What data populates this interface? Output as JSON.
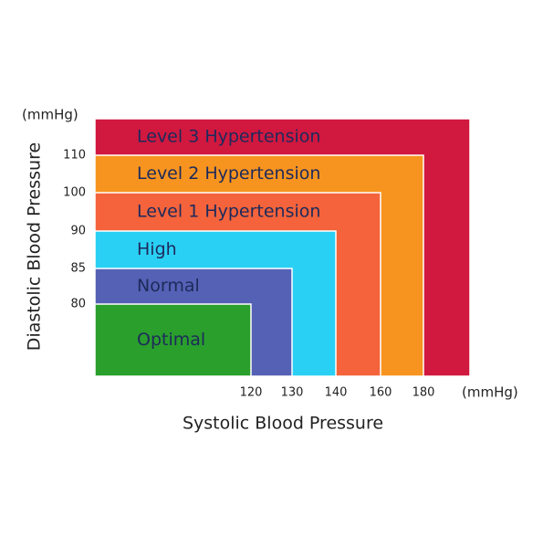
{
  "chart_data": {
    "type": "zones",
    "y_unit": "(mmHg)",
    "x_unit": "(mmHg)",
    "xlabel": "Systolic Blood Pressure",
    "ylabel": "Diastolic Blood Pressure",
    "xticks": [
      120,
      130,
      140,
      160,
      180
    ],
    "yticks": [
      80,
      85,
      90,
      100,
      110
    ],
    "zones": [
      {
        "name": "Optimal",
        "color": "#2a9f2c",
        "systolic": 120,
        "diastolic": 80
      },
      {
        "name": "Normal",
        "color": "#5561b4",
        "systolic": 130,
        "diastolic": 85
      },
      {
        "name": "High",
        "color": "#2ad0f4",
        "systolic": 140,
        "diastolic": 90
      },
      {
        "name": "Level 1 Hypertension",
        "color": "#f4633b",
        "systolic": 160,
        "diastolic": 100
      },
      {
        "name": "Level 2 Hypertension",
        "color": "#f7941f",
        "systolic": 180,
        "diastolic": 110
      },
      {
        "name": "Level 3 Hypertension",
        "color": "#d1183f",
        "systolic": null,
        "diastolic": null
      }
    ]
  }
}
